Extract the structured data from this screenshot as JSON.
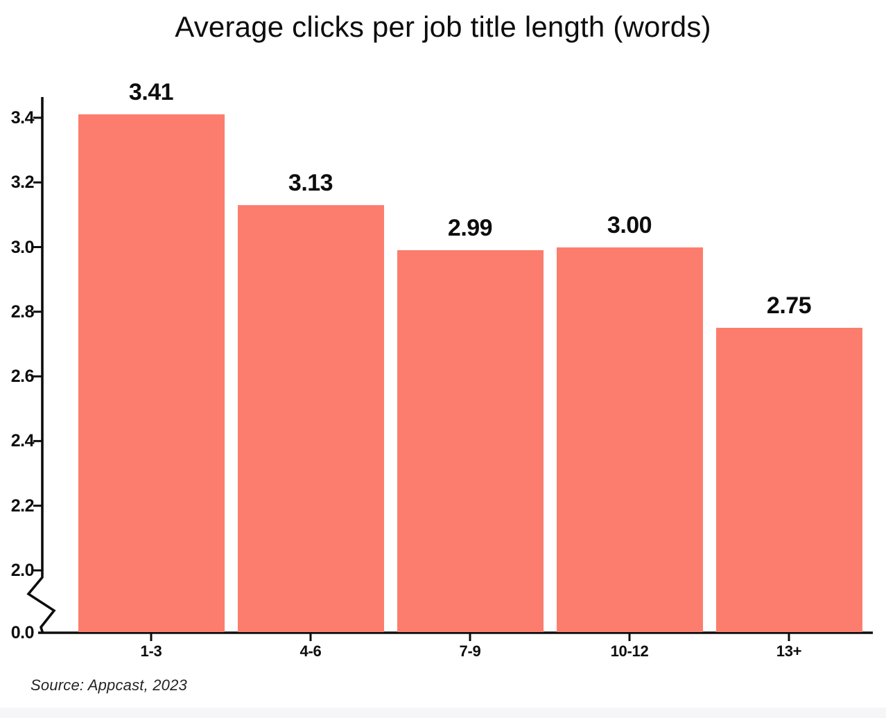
{
  "title": "Average clicks per job title length (words)",
  "source": "Source: Appcast, 2023",
  "colors": {
    "bar": "#FC7D6D",
    "axis": "#0d0d0d",
    "text": "#0d0d0d",
    "footer_strip": "#f6f6f8",
    "background": "#ffffff"
  },
  "chart_data": {
    "type": "bar",
    "title": "Average clicks per job title length (words)",
    "categories": [
      "1-3",
      "4-6",
      "7-9",
      "10-12",
      "13+"
    ],
    "values": [
      3.41,
      3.13,
      2.99,
      3.0,
      2.75
    ],
    "value_labels": [
      "3.41",
      "3.13",
      "2.99",
      "3.00",
      "2.75"
    ],
    "xlabel": "",
    "ylabel": "",
    "y_ticks": [
      0.0,
      2.0,
      2.2,
      2.4,
      2.6,
      2.8,
      3.0,
      3.2,
      3.4
    ],
    "y_tick_labels": [
      "0.0",
      "2.0",
      "2.2",
      "2.4",
      "2.6",
      "2.8",
      "3.0",
      "3.2",
      "3.4"
    ],
    "ylim_display": [
      2.0,
      3.5
    ],
    "axis_break": true,
    "grid": false,
    "legend": false,
    "bar_color": "#FC7D6D",
    "source": "Source: Appcast, 2023"
  }
}
